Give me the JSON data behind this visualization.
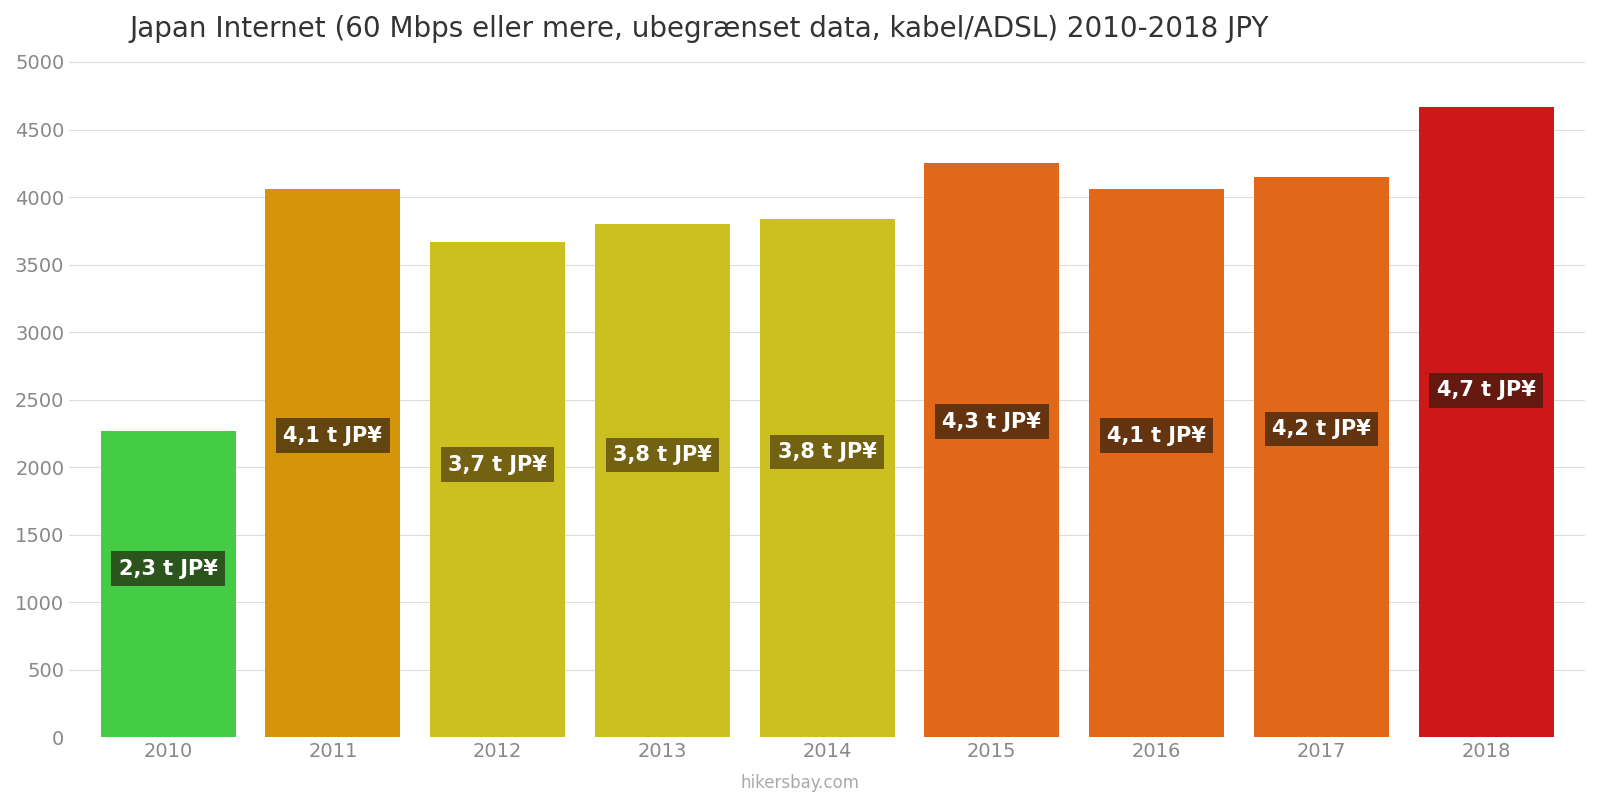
{
  "title": "Japan Internet (60 Mbps eller mere, ubegrænset data, kabel/ADSL) 2010-2018 JPY",
  "years": [
    2010,
    2011,
    2012,
    2013,
    2014,
    2015,
    2016,
    2017,
    2018
  ],
  "values": [
    2270,
    4060,
    3670,
    3800,
    3840,
    4250,
    4060,
    4150,
    4670
  ],
  "bar_colors": [
    "#44cc44",
    "#d4950a",
    "#ccc020",
    "#ccc020",
    "#ccc020",
    "#e06818",
    "#e06818",
    "#e06818",
    "#cc1818"
  ],
  "labels": [
    "2,3 t JP¥",
    "4,1 t JP¥",
    "3,7 t JP¥",
    "3,8 t JP¥",
    "3,8 t JP¥",
    "4,3 t JP¥",
    "4,1 t JP¥",
    "4,2 t JP¥",
    "4,7 t JP¥"
  ],
  "label_bg_colors": [
    "#2a4a1a",
    "#5a4010",
    "#6a5a10",
    "#6a5a10",
    "#6a5a10",
    "#5a3010",
    "#5a3010",
    "#5a3010",
    "#5a1a10"
  ],
  "label_text_color": "#ffffff",
  "ylabel_max": 5000,
  "ytick_step": 500,
  "footer": "hikersbay.com",
  "bg_color": "#ffffff",
  "grid_color": "#dddddd",
  "label_fontsize": 15,
  "title_fontsize": 20,
  "bar_width": 0.82
}
